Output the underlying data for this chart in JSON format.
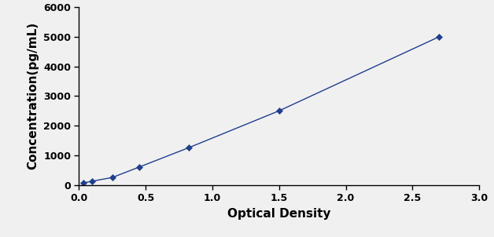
{
  "x": [
    0.03,
    0.1,
    0.25,
    0.45,
    0.82,
    1.5,
    2.7
  ],
  "y": [
    62,
    125,
    250,
    600,
    1250,
    2500,
    5000
  ],
  "line_color": "#1F3E8F",
  "marker_color": "#1F3E8F",
  "marker_style": "D",
  "marker_size": 4,
  "line_width": 1.0,
  "line_style": "-",
  "xlabel": "Optical Density",
  "ylabel": "Concentration(pg/mL)",
  "xlim": [
    0,
    3
  ],
  "ylim": [
    0,
    6000
  ],
  "xticks": [
    0,
    0.5,
    1,
    1.5,
    2,
    2.5,
    3
  ],
  "yticks": [
    0,
    1000,
    2000,
    3000,
    4000,
    5000,
    6000
  ],
  "xlabel_fontsize": 11,
  "ylabel_fontsize": 11,
  "tick_fontsize": 9,
  "figsize": [
    6.28,
    3.02
  ],
  "dpi": 100,
  "bg_color": "#f0f0f0"
}
